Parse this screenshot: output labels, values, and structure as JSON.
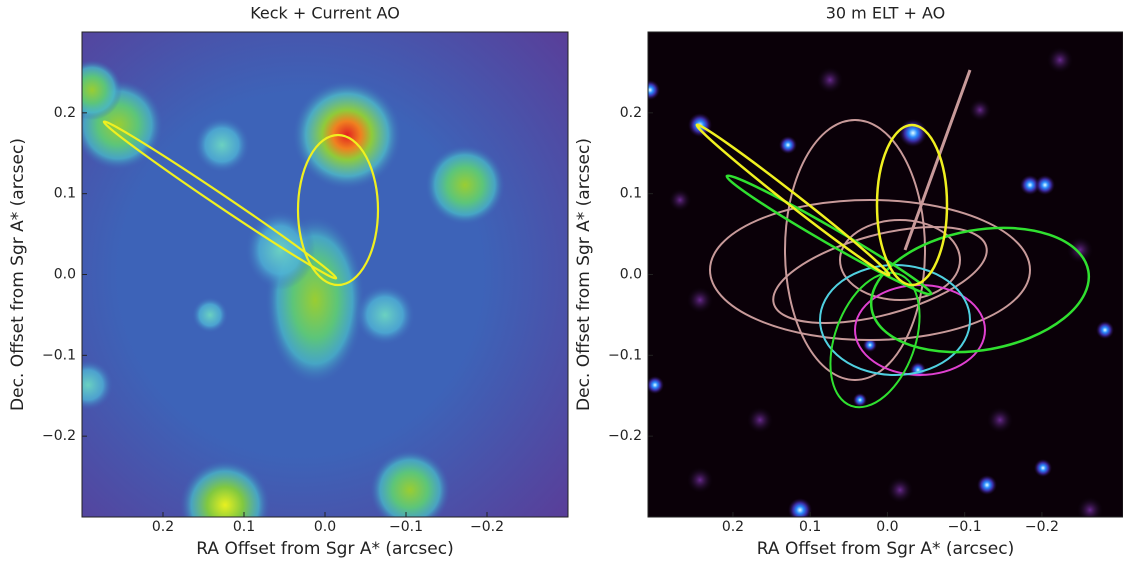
{
  "chart_data": [
    {
      "type": "image",
      "title": "Keck + Current AO",
      "x_label": "RA Offset from Sgr A* (arcsec)",
      "y_label": "Dec. Offset from Sgr A* (arcsec)",
      "xlim": [
        0.3,
        -0.3
      ],
      "ylim": [
        -0.3,
        0.3
      ],
      "xticks": [
        0.2,
        0.1,
        {
          "value": 0,
          "label": "0.0"
        },
        {
          "value": -0.1,
          "label": "−0.1"
        },
        {
          "value": -0.2,
          "label": "−0.2"
        }
      ],
      "yticks": [
        {
          "value": -0.2,
          "label": "−0.2"
        },
        {
          "value": -0.1,
          "label": "−0.1"
        },
        {
          "value": 0,
          "label": "0.0"
        },
        0.1,
        0.2
      ]
    },
    {
      "type": "image",
      "title": "30 m ELT + AO",
      "x_label": "RA Offset from Sgr A* (arcsec)",
      "y_label": "Dec. Offset from Sgr A* (arcsec)",
      "xlim": [
        0.31,
        -0.305
      ],
      "ylim": [
        -0.3,
        0.3
      ],
      "xticks": [
        0.2,
        0.1,
        {
          "value": 0,
          "label": "0.0"
        },
        {
          "value": -0.1,
          "label": "−0.1"
        },
        {
          "value": -0.2,
          "label": "−0.2"
        }
      ],
      "yticks": [
        {
          "value": -0.2,
          "label": "−0.2"
        },
        {
          "value": -0.1,
          "label": "−0.1"
        },
        {
          "value": 0,
          "label": "0.0"
        },
        0.1,
        0.2
      ]
    }
  ]
}
